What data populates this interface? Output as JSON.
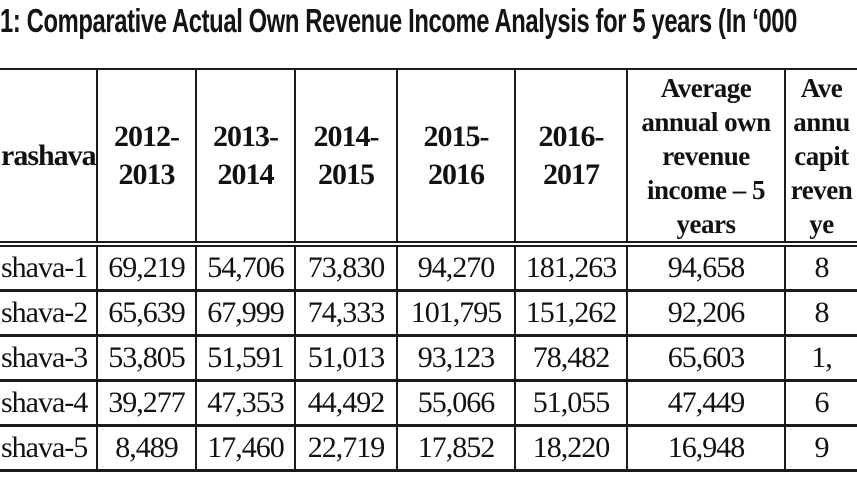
{
  "title": "1: Comparative Actual Own Revenue Income Analysis for 5 years (In ‘000",
  "colors": {
    "background": "#ffffff",
    "text": "#121212",
    "border": "#1b1b1b"
  },
  "table": {
    "header": {
      "pourashava": "rashava",
      "years": [
        "2012-\n2013",
        "2013-\n2014",
        "2014-\n2015",
        "2015-\n2016",
        "2016-\n2017"
      ],
      "average": "Average\nannual own\nrevenue\nincome – 5\nyears",
      "clipped_last": "Ave\nannu\ncapit\nreven\nye"
    },
    "rows": [
      {
        "label": "shava-1",
        "values": [
          "69,219",
          "54,706",
          "73,830",
          "94,270",
          "181,263",
          "94,658"
        ],
        "clipped": "8"
      },
      {
        "label": "shava-2",
        "values": [
          "65,639",
          "67,999",
          "74,333",
          "101,795",
          "151,262",
          "92,206"
        ],
        "clipped": "8"
      },
      {
        "label": "shava-3",
        "values": [
          "53,805",
          "51,591",
          "51,013",
          "93,123",
          "78,482",
          "65,603"
        ],
        "clipped": "1,"
      },
      {
        "label": "shava-4",
        "values": [
          "39,277",
          "47,353",
          "44,492",
          "55,066",
          "51,055",
          "47,449"
        ],
        "clipped": "6"
      },
      {
        "label": "shava-5",
        "values": [
          "8,489",
          "17,460",
          "22,719",
          "17,852",
          "18,220",
          "16,948"
        ],
        "clipped": "9"
      }
    ]
  }
}
